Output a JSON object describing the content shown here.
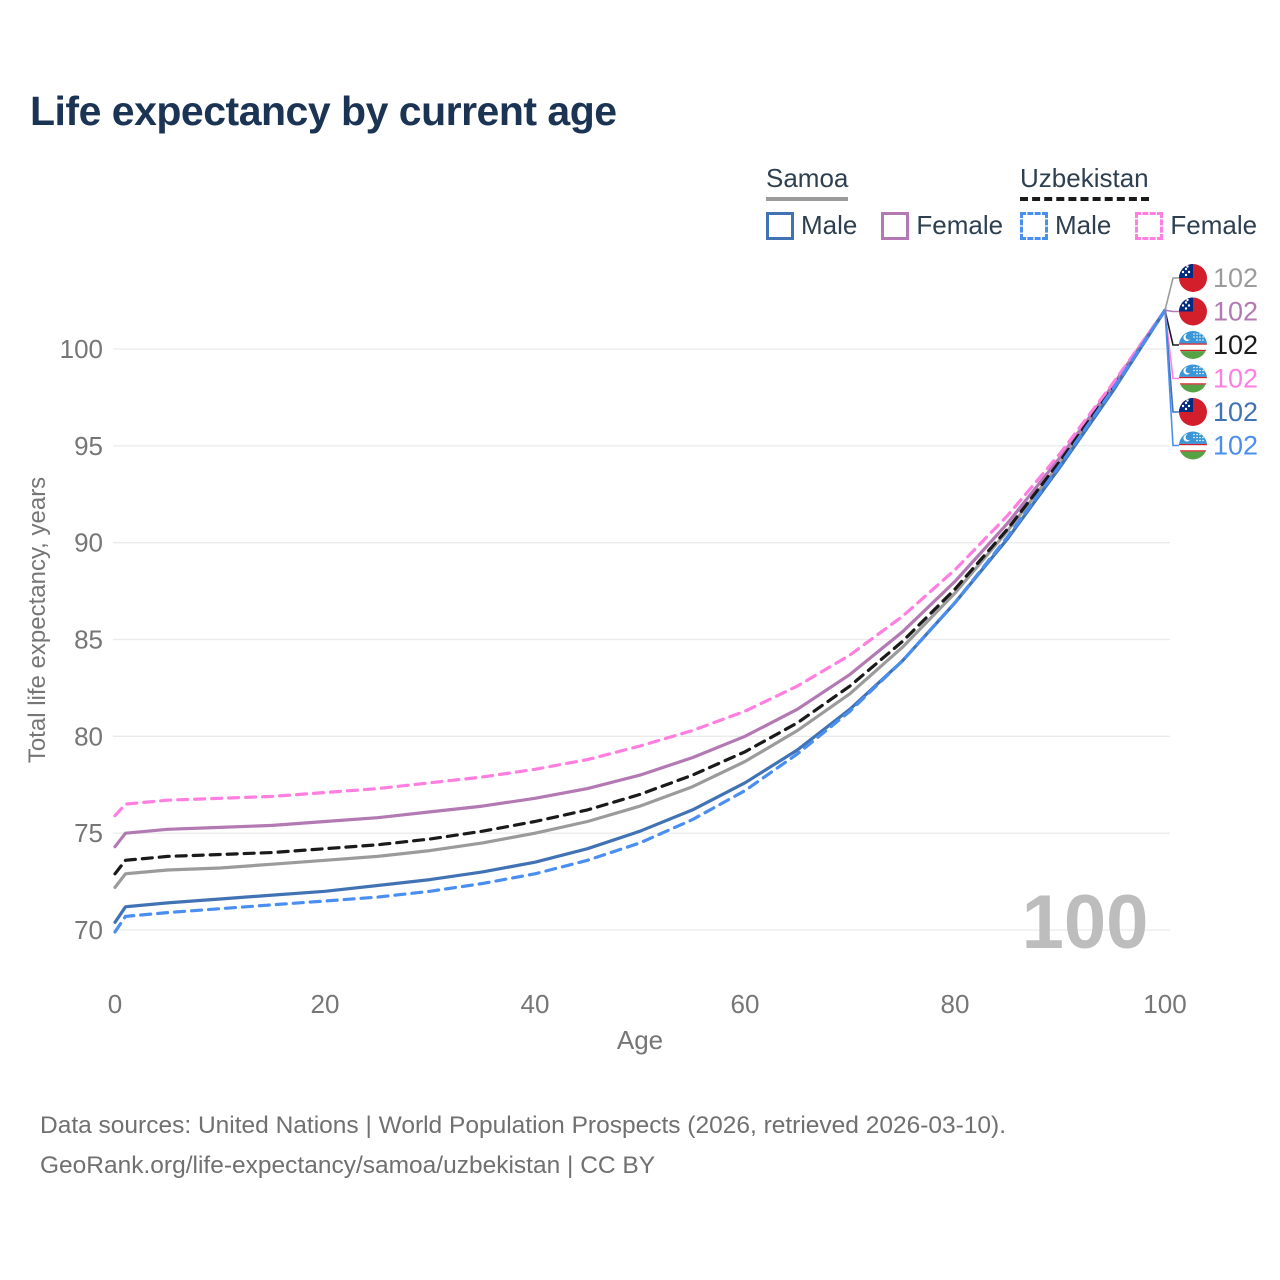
{
  "title": "Life expectancy by current age",
  "legend": {
    "samoa": {
      "label": "Samoa",
      "male_label": "Male",
      "female_label": "Female"
    },
    "uzbekistan": {
      "label": "Uzbekistan",
      "male_label": "Male",
      "female_label": "Female"
    }
  },
  "colors": {
    "samoa_male": "#4173b4",
    "samoa_female": "#b279b2",
    "samoa_total": "#9b9b9b",
    "uzbekistan_male": "#4a8ff0",
    "uzbekistan_female": "#ff7fe1",
    "uzbekistan_total": "#1a1a1a",
    "grid": "#ebebeb",
    "axis_text": "#767676",
    "watermark": "#bdbdbd",
    "title_text": "#1c3454",
    "legend_text": "#2e3f50",
    "footer_text": "#707070"
  },
  "chart_data": {
    "type": "line",
    "title": "Life expectancy by current age",
    "xlabel": "Age",
    "ylabel": "Total life expectancy, years",
    "xlim": [
      0,
      100
    ],
    "ylim": [
      69,
      103
    ],
    "xticks": [
      0,
      20,
      40,
      60,
      80,
      100
    ],
    "yticks": [
      70,
      75,
      80,
      85,
      90,
      95,
      100
    ],
    "grid": "horizontal",
    "legend_position": "top-right",
    "watermark": "100",
    "x": [
      0,
      1,
      5,
      10,
      15,
      20,
      25,
      30,
      35,
      40,
      45,
      50,
      55,
      60,
      65,
      70,
      75,
      80,
      85,
      90,
      95,
      100
    ],
    "series": [
      {
        "id": "samoa-total",
        "name": "Samoa",
        "sex": "Total",
        "dashed": false,
        "color_key": "samoa_total",
        "values": [
          72.2,
          72.9,
          73.1,
          73.2,
          73.4,
          73.6,
          73.8,
          74.1,
          74.5,
          75.0,
          75.6,
          76.4,
          77.4,
          78.7,
          80.3,
          82.2,
          84.6,
          87.4,
          90.6,
          94.1,
          97.9,
          102
        ]
      },
      {
        "id": "samoa-female",
        "name": "Samoa Female",
        "sex": "Female",
        "dashed": false,
        "color_key": "samoa_female",
        "values": [
          74.3,
          75.0,
          75.2,
          75.3,
          75.4,
          75.6,
          75.8,
          76.1,
          76.4,
          76.8,
          77.3,
          78.0,
          78.9,
          80.0,
          81.4,
          83.2,
          85.4,
          88.0,
          91.0,
          94.4,
          98.1,
          102
        ]
      },
      {
        "id": "uzbekistan-total",
        "name": "Uzbekistan",
        "sex": "Total",
        "dashed": true,
        "color_key": "uzbekistan_total",
        "values": [
          72.9,
          73.6,
          73.8,
          73.9,
          74.0,
          74.2,
          74.4,
          74.7,
          75.1,
          75.6,
          76.2,
          77.0,
          78.0,
          79.2,
          80.7,
          82.6,
          84.9,
          87.6,
          90.7,
          94.2,
          98.0,
          102
        ]
      },
      {
        "id": "uzbekistan-female",
        "name": "Uzbekistan Female",
        "sex": "Female",
        "dashed": true,
        "color_key": "uzbekistan_female",
        "values": [
          75.9,
          76.5,
          76.7,
          76.8,
          76.9,
          77.1,
          77.3,
          77.6,
          77.9,
          78.3,
          78.8,
          79.5,
          80.3,
          81.3,
          82.6,
          84.2,
          86.2,
          88.6,
          91.4,
          94.6,
          98.2,
          102
        ]
      },
      {
        "id": "samoa-male",
        "name": "Samoa Male",
        "sex": "Male",
        "dashed": false,
        "color_key": "samoa_male",
        "values": [
          70.4,
          71.2,
          71.4,
          71.6,
          71.8,
          72.0,
          72.3,
          72.6,
          73.0,
          73.5,
          74.2,
          75.1,
          76.2,
          77.6,
          79.3,
          81.4,
          83.9,
          86.9,
          90.2,
          93.9,
          97.8,
          102
        ]
      },
      {
        "id": "uzbekistan-male",
        "name": "Uzbekistan Male",
        "sex": "Male",
        "dashed": true,
        "color_key": "uzbekistan_male",
        "values": [
          69.9,
          70.7,
          70.9,
          71.1,
          71.3,
          71.5,
          71.7,
          72.0,
          72.4,
          72.9,
          73.6,
          74.5,
          75.7,
          77.2,
          79.1,
          81.3,
          83.9,
          86.9,
          90.3,
          94.0,
          97.9,
          102
        ]
      }
    ]
  },
  "end_labels": [
    {
      "id": "samoa-total",
      "flag": "samoa",
      "value": "102",
      "color_key": "samoa_total"
    },
    {
      "id": "samoa-female",
      "flag": "samoa",
      "value": "102",
      "color_key": "samoa_female"
    },
    {
      "id": "uzbekistan-total",
      "flag": "uzbekistan",
      "value": "102",
      "color_key": "uzbekistan_total"
    },
    {
      "id": "uzbekistan-female",
      "flag": "uzbekistan",
      "value": "102",
      "color_key": "uzbekistan_female"
    },
    {
      "id": "samoa-male",
      "flag": "samoa",
      "value": "102",
      "color_key": "samoa_male"
    },
    {
      "id": "uzbekistan-male",
      "flag": "uzbekistan",
      "value": "102",
      "color_key": "uzbekistan_male"
    }
  ],
  "footer": {
    "line1": "Data sources: United Nations | World Population Prospects (2026, retrieved 2026-03-10).",
    "line2": "GeoRank.org/life-expectancy/samoa/uzbekistan | CC BY"
  }
}
